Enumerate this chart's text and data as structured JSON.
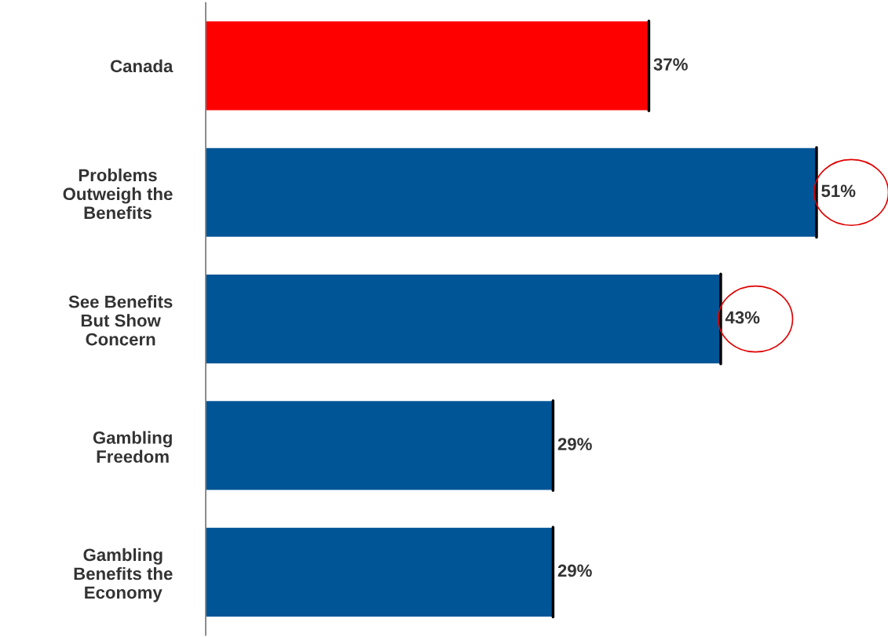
{
  "chart_data": {
    "type": "bar",
    "orientation": "horizontal",
    "categories": [
      "Canada",
      "Problems\nOutweigh the\nBenefits",
      "See Benefits\nBut Show\nConcern",
      "Gambling\nFreedom",
      "Gambling\nBenefits the\nEconomy"
    ],
    "values": [
      37,
      51,
      43,
      29,
      29
    ],
    "colors": [
      "#ff0000",
      "#005596",
      "#005596",
      "#005596",
      "#005596"
    ],
    "value_labels": [
      "37%",
      "51%",
      "43%",
      "29%",
      "29%"
    ],
    "grid": false,
    "legend": false
  }
}
